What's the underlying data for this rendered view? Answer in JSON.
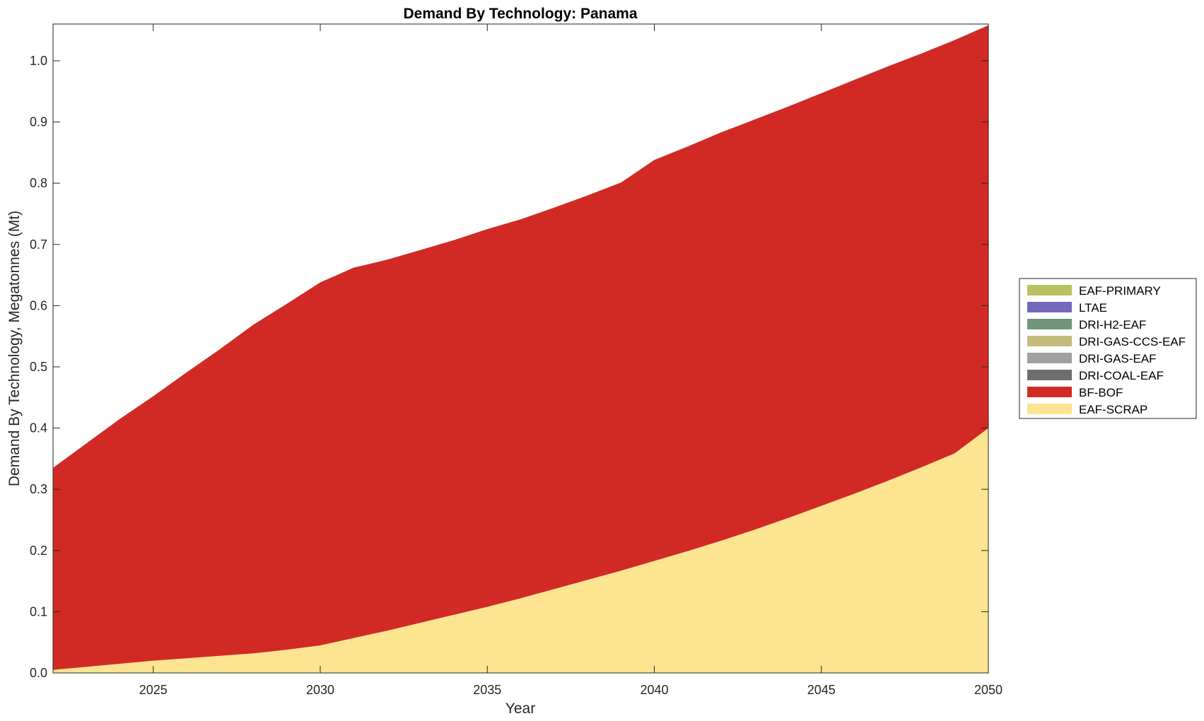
{
  "chart_data": {
    "type": "area",
    "stacked": true,
    "title": "Demand By Technology: Panama",
    "xlabel": "Year",
    "ylabel": "Demand By Technology, Megatonnes (Mt)",
    "xlim": [
      2022,
      2050
    ],
    "ylim": [
      0,
      1.06
    ],
    "xticks": [
      2025,
      2030,
      2035,
      2040,
      2045,
      2050
    ],
    "xtick_labels": [
      "2025",
      "2030",
      "2035",
      "2040",
      "2045",
      "2050"
    ],
    "yticks": [
      0,
      0.1,
      0.2,
      0.3,
      0.4,
      0.5,
      0.6,
      0.7,
      0.8,
      0.9,
      1.0
    ],
    "ytick_labels": [
      "0.0",
      "0.1",
      "0.2",
      "0.3",
      "0.4",
      "0.5",
      "0.6",
      "0.7",
      "0.8",
      "0.9",
      "1.0"
    ],
    "grid": false,
    "legend_position": "right",
    "x": [
      2022,
      2023,
      2024,
      2025,
      2026,
      2027,
      2028,
      2029,
      2030,
      2031,
      2032,
      2033,
      2034,
      2035,
      2036,
      2037,
      2038,
      2039,
      2040,
      2041,
      2042,
      2043,
      2044,
      2045,
      2046,
      2047,
      2048,
      2049,
      2050
    ],
    "series": [
      {
        "name": "EAF-SCRAP",
        "color": "#FDE491",
        "values": [
          0.005,
          0.01,
          0.015,
          0.02,
          0.024,
          0.028,
          0.032,
          0.038,
          0.045,
          0.057,
          0.069,
          0.082,
          0.095,
          0.108,
          0.122,
          0.137,
          0.152,
          0.167,
          0.183,
          0.199,
          0.216,
          0.234,
          0.253,
          0.273,
          0.293,
          0.314,
          0.336,
          0.359,
          0.4
        ]
      },
      {
        "name": "BF-BOF",
        "color": "#D12A25",
        "values": [
          0.33,
          0.365,
          0.4,
          0.432,
          0.467,
          0.501,
          0.537,
          0.565,
          0.593,
          0.605,
          0.606,
          0.609,
          0.612,
          0.617,
          0.619,
          0.623,
          0.628,
          0.634,
          0.655,
          0.661,
          0.667,
          0.67,
          0.672,
          0.674,
          0.676,
          0.677,
          0.676,
          0.675,
          0.658
        ]
      },
      {
        "name": "DRI-COAL-EAF",
        "color": "#6E6E6E",
        "values": [
          0,
          0,
          0,
          0,
          0,
          0,
          0,
          0,
          0,
          0,
          0,
          0,
          0,
          0,
          0,
          0,
          0,
          0,
          0,
          0,
          0,
          0,
          0,
          0,
          0,
          0,
          0,
          0,
          0
        ]
      },
      {
        "name": "DRI-GAS-EAF",
        "color": "#A0A0A0",
        "values": [
          0,
          0,
          0,
          0,
          0,
          0,
          0,
          0,
          0,
          0,
          0,
          0,
          0,
          0,
          0,
          0,
          0,
          0,
          0,
          0,
          0,
          0,
          0,
          0,
          0,
          0,
          0,
          0,
          0
        ]
      },
      {
        "name": "DRI-GAS-CCS-EAF",
        "color": "#C4BB7C",
        "values": [
          0,
          0,
          0,
          0,
          0,
          0,
          0,
          0,
          0,
          0,
          0,
          0,
          0,
          0,
          0,
          0,
          0,
          0,
          0,
          0,
          0,
          0,
          0,
          0,
          0,
          0,
          0,
          0,
          0
        ]
      },
      {
        "name": "DRI-H2-EAF",
        "color": "#72957A",
        "values": [
          0,
          0,
          0,
          0,
          0,
          0,
          0,
          0,
          0,
          0,
          0,
          0,
          0,
          0,
          0,
          0,
          0,
          0,
          0,
          0,
          0,
          0,
          0,
          0,
          0,
          0,
          0,
          0,
          0
        ]
      },
      {
        "name": "LTAE",
        "color": "#7468BC",
        "values": [
          0,
          0,
          0,
          0,
          0,
          0,
          0,
          0,
          0,
          0,
          0,
          0,
          0,
          0,
          0,
          0,
          0,
          0,
          0,
          0,
          0,
          0,
          0,
          0,
          0,
          0,
          0,
          0,
          0
        ]
      },
      {
        "name": "EAF-PRIMARY",
        "color": "#B9C163",
        "values": [
          0,
          0,
          0,
          0,
          0,
          0,
          0,
          0,
          0,
          0,
          0,
          0,
          0,
          0,
          0,
          0,
          0,
          0,
          0,
          0,
          0,
          0,
          0,
          0,
          0,
          0,
          0,
          0,
          0
        ]
      }
    ],
    "legend_order": [
      "EAF-PRIMARY",
      "LTAE",
      "DRI-H2-EAF",
      "DRI-GAS-CCS-EAF",
      "DRI-GAS-EAF",
      "DRI-COAL-EAF",
      "BF-BOF",
      "EAF-SCRAP"
    ]
  }
}
